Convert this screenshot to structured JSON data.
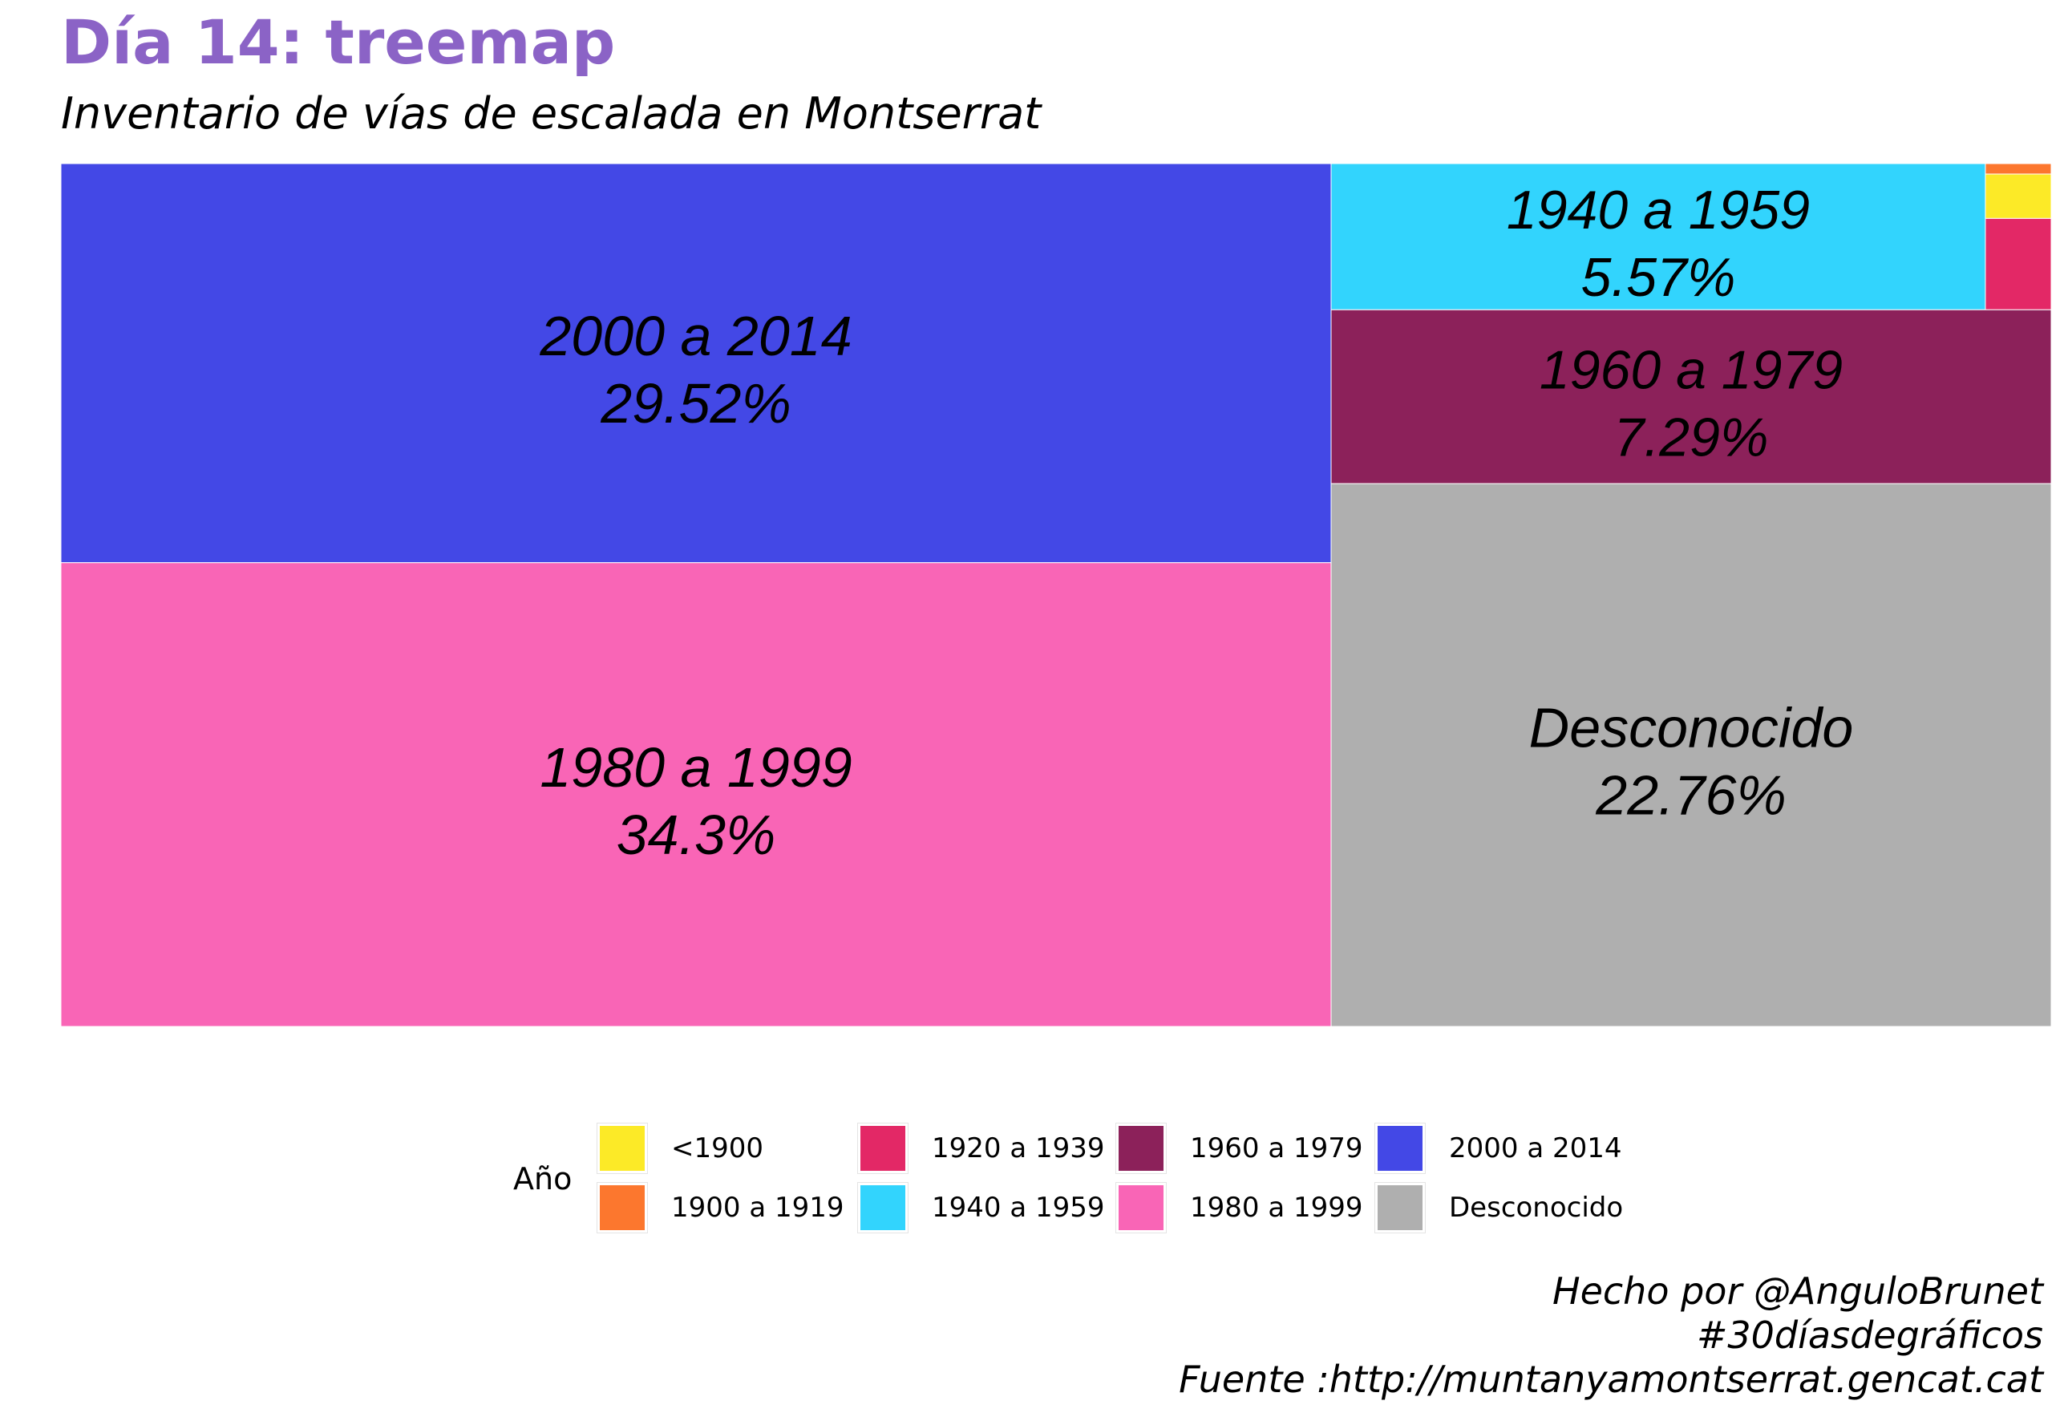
{
  "title": "Día 14: treemap",
  "subtitle": "Inventario de vías de escalada en Montserrat",
  "legend": {
    "title": "Año",
    "items": [
      {
        "label": "<1900",
        "color": "#fcea27"
      },
      {
        "label": "1900 a 1919",
        "color": "#fc772e"
      },
      {
        "label": "1920 a 1939",
        "color": "#e32866"
      },
      {
        "label": "1940 a 1959",
        "color": "#32d4fd"
      },
      {
        "label": "1960 a 1979",
        "color": "#8c215a"
      },
      {
        "label": "1980 a 1999",
        "color": "#f965b6"
      },
      {
        "label": "2000 a 2014",
        "color": "#4348e6"
      },
      {
        "label": "Desconocido",
        "color": "#afafaf"
      }
    ]
  },
  "caption": {
    "line1": "Hecho por @AnguloBrunet",
    "line2": "#30díasdegráficos",
    "line3": "Fuente :http://muntanyamontserrat.gencat.cat"
  },
  "chart_data": {
    "type": "treemap",
    "title": "Día 14: treemap",
    "subtitle": "Inventario de vías de escalada en Montserrat",
    "legend_title": "Año",
    "legend_position": "bottom",
    "items": [
      {
        "name": "1980 a 1999",
        "percent": 34.3,
        "label": "1980 a 1999",
        "value_label": "34.3%",
        "color": "#f965b6"
      },
      {
        "name": "2000 a 2014",
        "percent": 29.52,
        "label": "2000 a 2014",
        "value_label": "29.52%",
        "color": "#4348e6"
      },
      {
        "name": "Desconocido",
        "percent": 22.76,
        "label": "Desconocido",
        "value_label": "22.76%",
        "color": "#afafaf"
      },
      {
        "name": "1960 a 1979",
        "percent": 7.29,
        "label": "1960 a 1979",
        "value_label": "7.29%",
        "color": "#8c215a"
      },
      {
        "name": "1940 a 1959",
        "percent": 5.57,
        "label": "1940 a 1959",
        "value_label": "5.57%",
        "color": "#32d4fd"
      },
      {
        "name": "1920 a 1939",
        "percent": 0.35,
        "label": "",
        "value_label": "",
        "color": "#e32866"
      },
      {
        "name": "<1900",
        "percent": 0.17,
        "label": "",
        "value_label": "",
        "color": "#fcea27"
      },
      {
        "name": "1900 a 1919",
        "percent": 0.04,
        "label": "",
        "value_label": "",
        "color": "#fc772e"
      }
    ]
  }
}
